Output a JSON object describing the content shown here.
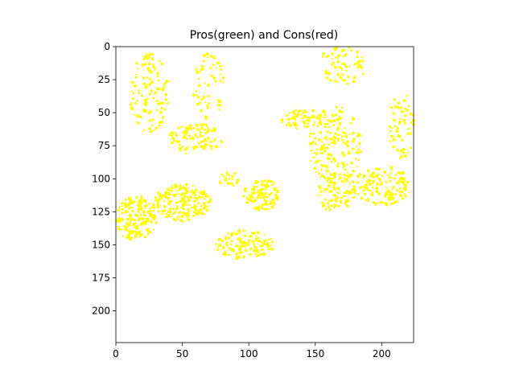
{
  "chart_data": {
    "type": "scatter",
    "title": "Pros(green) and Cons(red)",
    "xlabel": "",
    "ylabel": "",
    "xlim": [
      0,
      224
    ],
    "ylim": [
      224,
      0
    ],
    "y_inverted": true,
    "grid": false,
    "xticks": [
      0,
      50,
      100,
      150,
      200
    ],
    "yticks": [
      0,
      25,
      50,
      75,
      100,
      125,
      150,
      175,
      200
    ],
    "xtick_labels": [
      "0",
      "50",
      "100",
      "150",
      "200"
    ],
    "ytick_labels": [
      "0",
      "25",
      "50",
      "75",
      "100",
      "125",
      "150",
      "175",
      "200"
    ],
    "marker_color": "#ffff00",
    "background_color": "#ffffff",
    "regions": [
      {
        "cx": 15,
        "cy": 130,
        "rx": 16,
        "ry": 17,
        "n": 180
      },
      {
        "cx": 50,
        "cy": 118,
        "rx": 22,
        "ry": 14,
        "n": 180
      },
      {
        "cx": 110,
        "cy": 112,
        "rx": 14,
        "ry": 12,
        "n": 110
      },
      {
        "cx": 97,
        "cy": 150,
        "rx": 22,
        "ry": 11,
        "n": 130
      },
      {
        "cx": 60,
        "cy": 70,
        "rx": 20,
        "ry": 12,
        "n": 100
      },
      {
        "cx": 25,
        "cy": 35,
        "rx": 15,
        "ry": 30,
        "n": 110
      },
      {
        "cx": 70,
        "cy": 30,
        "rx": 12,
        "ry": 25,
        "n": 60
      },
      {
        "cx": 165,
        "cy": 75,
        "rx": 20,
        "ry": 30,
        "n": 170
      },
      {
        "cx": 200,
        "cy": 105,
        "rx": 22,
        "ry": 15,
        "n": 130
      },
      {
        "cx": 215,
        "cy": 60,
        "rx": 10,
        "ry": 25,
        "n": 60
      },
      {
        "cx": 140,
        "cy": 55,
        "rx": 16,
        "ry": 8,
        "n": 60
      },
      {
        "cx": 170,
        "cy": 15,
        "rx": 18,
        "ry": 15,
        "n": 70
      },
      {
        "cx": 165,
        "cy": 110,
        "rx": 15,
        "ry": 15,
        "n": 80
      },
      {
        "cx": 85,
        "cy": 100,
        "rx": 8,
        "ry": 6,
        "n": 20
      }
    ]
  }
}
